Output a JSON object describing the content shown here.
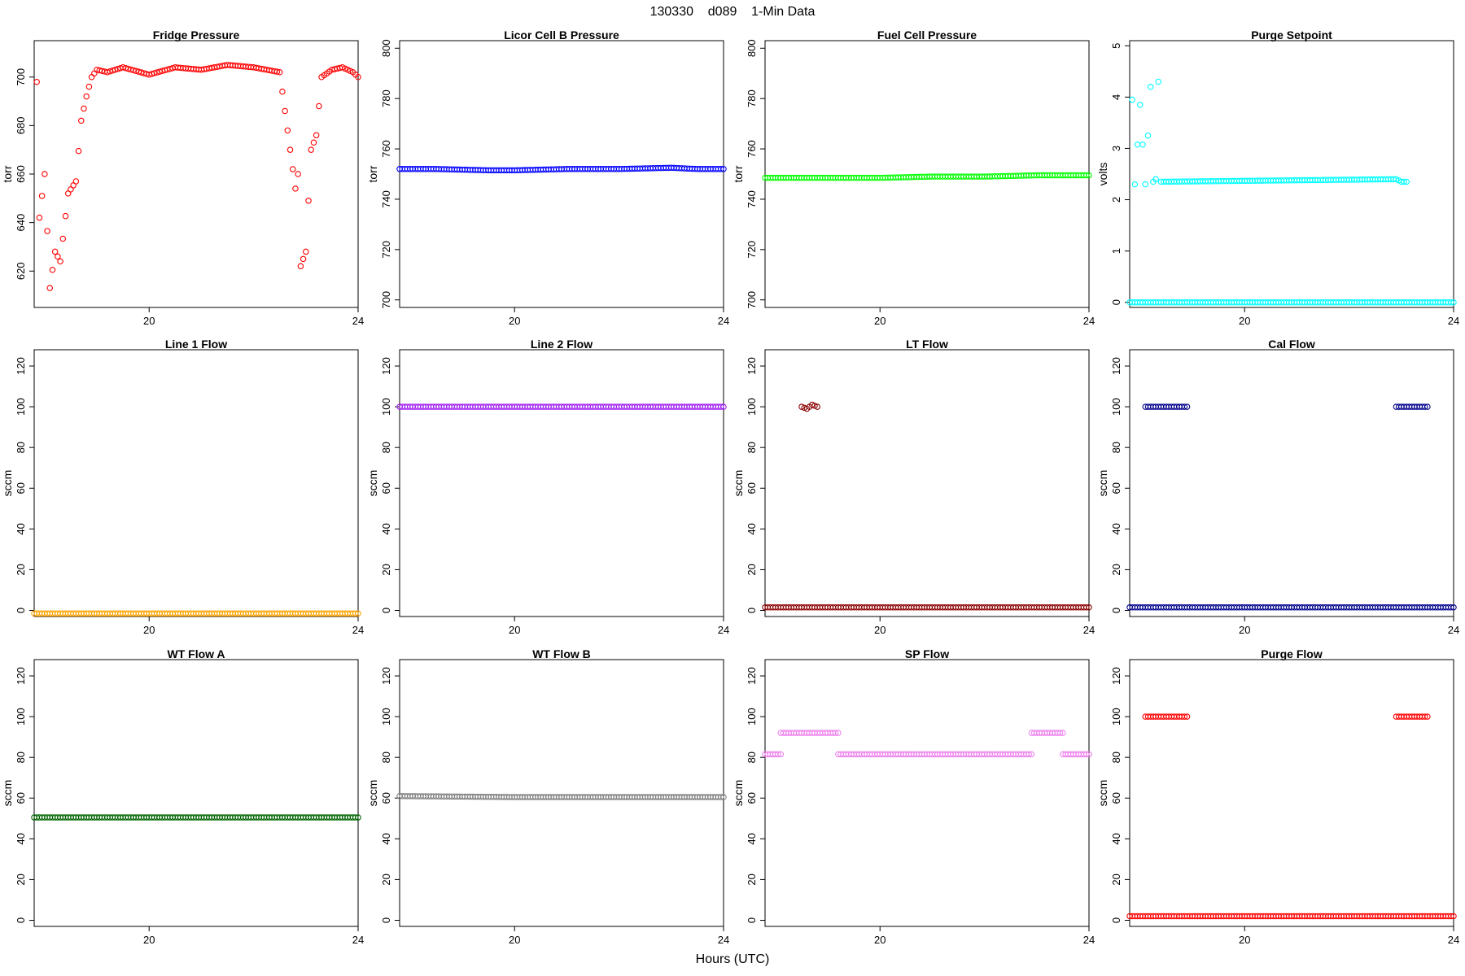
{
  "figure": {
    "title": "130330    d089    1-Min Data",
    "xlabel": "Hours (UTC)"
  },
  "chart_data": [
    {
      "type": "scatter",
      "title": "Fridge Pressure",
      "ylabel": "torr",
      "color": "#ff0000",
      "xlim": [
        17.8,
        24.0
      ],
      "ylim": [
        605,
        715
      ],
      "xticks": [
        20,
        24
      ],
      "yticks": [
        620,
        640,
        660,
        680,
        700
      ],
      "series": [
        {
          "x": [
            17.85,
            17.9,
            18.0,
            18.1,
            18.2,
            18.3,
            18.45,
            18.6,
            18.7,
            18.8,
            18.9,
            19.0,
            19.2,
            19.5,
            20.0,
            20.5,
            21.0,
            21.5,
            22.0,
            22.5,
            22.8,
            22.85,
            22.9,
            23.0,
            23.1,
            23.2,
            23.3,
            23.5,
            23.7,
            23.9,
            24.0
          ],
          "y": [
            698,
            642,
            660,
            613,
            628,
            624,
            652,
            657,
            682,
            692,
            700,
            703,
            702,
            704,
            701,
            704,
            703,
            705,
            704,
            702,
            654,
            660,
            622,
            628,
            670,
            676,
            700,
            703,
            704,
            702,
            700
          ]
        }
      ]
    },
    {
      "type": "scatter",
      "title": "Licor Cell B Pressure",
      "ylabel": "torr",
      "color": "#0000ff",
      "xlim": [
        17.8,
        24.0
      ],
      "ylim": [
        697,
        803
      ],
      "xticks": [
        20,
        24
      ],
      "yticks": [
        700,
        720,
        740,
        760,
        780,
        800
      ],
      "series": [
        {
          "x": [
            17.8,
            18.5,
            19.5,
            20.0,
            21.0,
            22.0,
            23.0,
            23.5,
            24.0
          ],
          "y": [
            752,
            752,
            751.5,
            751.5,
            752,
            752,
            752.5,
            752,
            752
          ]
        }
      ]
    },
    {
      "type": "scatter",
      "title": "Fuel Cell Pressure",
      "ylabel": "torr",
      "color": "#00ff00",
      "xlim": [
        17.8,
        24.0
      ],
      "ylim": [
        697,
        803
      ],
      "xticks": [
        20,
        24
      ],
      "yticks": [
        700,
        720,
        740,
        760,
        780,
        800
      ],
      "series": [
        {
          "x": [
            17.8,
            18.5,
            19.5,
            20.0,
            21.0,
            22.0,
            23.0,
            24.0
          ],
          "y": [
            748.5,
            748.5,
            748.5,
            748.5,
            749,
            749,
            749.5,
            749.5
          ]
        }
      ]
    },
    {
      "type": "scatter",
      "title": "Purge Setpoint",
      "ylabel": "volts",
      "color": "#00ffff",
      "xlim": [
        17.8,
        24.0
      ],
      "ylim": [
        -0.1,
        5.1
      ],
      "xticks": [
        20,
        24
      ],
      "yticks": [
        0,
        1,
        2,
        3,
        4,
        5
      ],
      "series": [
        {
          "x": [
            17.85,
            17.9,
            18.0,
            18.1,
            18.2,
            18.25,
            18.3,
            18.35,
            18.4,
            22.9,
            23.0,
            23.1
          ],
          "y": [
            3.95,
            2.3,
            3.85,
            2.3,
            4.2,
            2.35,
            2.4,
            4.3,
            2.35,
            2.4,
            2.35,
            2.35
          ]
        },
        {
          "x": [
            17.8,
            24.0
          ],
          "y": [
            0,
            0
          ]
        }
      ]
    },
    {
      "type": "scatter",
      "title": "Line 1 Flow",
      "ylabel": "sccm",
      "color": "#ffa500",
      "xlim": [
        17.8,
        24.0
      ],
      "ylim": [
        -3,
        128
      ],
      "xticks": [
        20,
        24
      ],
      "yticks": [
        0,
        20,
        40,
        60,
        80,
        100,
        120
      ],
      "series": [
        {
          "x": [
            17.8,
            24.0
          ],
          "y": [
            -1.5,
            -1.5
          ]
        }
      ]
    },
    {
      "type": "scatter",
      "title": "Line 2 Flow",
      "ylabel": "sccm",
      "color": "#a020f0",
      "xlim": [
        17.8,
        24.0
      ],
      "ylim": [
        -3,
        128
      ],
      "xticks": [
        20,
        24
      ],
      "yticks": [
        0,
        20,
        40,
        60,
        80,
        100,
        120
      ],
      "series": [
        {
          "x": [
            17.8,
            24.0
          ],
          "y": [
            100,
            100
          ]
        }
      ]
    },
    {
      "type": "scatter",
      "title": "LT Flow",
      "ylabel": "sccm",
      "color": "#8b0000",
      "xlim": [
        17.8,
        24.0
      ],
      "ylim": [
        -3,
        128
      ],
      "xticks": [
        20,
        24
      ],
      "yticks": [
        0,
        20,
        40,
        60,
        80,
        100,
        120
      ],
      "series": [
        {
          "x": [
            18.5,
            18.6,
            18.7,
            18.8
          ],
          "y": [
            100,
            99,
            101,
            100
          ]
        },
        {
          "x": [
            17.8,
            24.0
          ],
          "y": [
            1.5,
            1.5
          ]
        }
      ]
    },
    {
      "type": "scatter",
      "title": "Cal Flow",
      "ylabel": "sccm",
      "color": "#00008b",
      "xlim": [
        17.8,
        24.0
      ],
      "ylim": [
        -3,
        128
      ],
      "xticks": [
        20,
        24
      ],
      "yticks": [
        0,
        20,
        40,
        60,
        80,
        100,
        120
      ],
      "series": [
        {
          "x": [
            18.1,
            18.9
          ],
          "y": [
            100,
            100
          ]
        },
        {
          "x": [
            22.9,
            23.5
          ],
          "y": [
            100,
            100
          ]
        },
        {
          "x": [
            17.8,
            24.0
          ],
          "y": [
            1.5,
            1.5
          ]
        }
      ]
    },
    {
      "type": "scatter",
      "title": "WT Flow A",
      "ylabel": "sccm",
      "color": "#006400",
      "xlim": [
        17.8,
        24.0
      ],
      "ylim": [
        -3,
        128
      ],
      "xticks": [
        20,
        24
      ],
      "yticks": [
        0,
        20,
        40,
        60,
        80,
        100,
        120
      ],
      "series": [
        {
          "x": [
            17.8,
            24.0
          ],
          "y": [
            50.5,
            50.5
          ]
        }
      ]
    },
    {
      "type": "scatter",
      "title": "WT Flow B",
      "ylabel": "sccm",
      "color": "#808080",
      "xlim": [
        17.8,
        24.0
      ],
      "ylim": [
        -3,
        128
      ],
      "xticks": [
        20,
        24
      ],
      "yticks": [
        0,
        20,
        40,
        60,
        80,
        100,
        120
      ],
      "series": [
        {
          "x": [
            17.8,
            20.0,
            24.0
          ],
          "y": [
            61,
            60.5,
            60.5
          ]
        }
      ]
    },
    {
      "type": "scatter",
      "title": "SP Flow",
      "ylabel": "sccm",
      "color": "#ee82ee",
      "xlim": [
        17.8,
        24.0
      ],
      "ylim": [
        -3,
        128
      ],
      "xticks": [
        20,
        24
      ],
      "yticks": [
        0,
        20,
        40,
        60,
        80,
        100,
        120
      ],
      "series": [
        {
          "x": [
            17.8,
            18.1
          ],
          "y": [
            81.5,
            81.5
          ]
        },
        {
          "x": [
            18.1,
            19.2
          ],
          "y": [
            92,
            92
          ]
        },
        {
          "x": [
            19.2,
            22.9
          ],
          "y": [
            81.5,
            81.5
          ]
        },
        {
          "x": [
            22.9,
            23.5
          ],
          "y": [
            92,
            92
          ]
        },
        {
          "x": [
            23.5,
            24.0
          ],
          "y": [
            81.5,
            81.5
          ]
        }
      ]
    },
    {
      "type": "scatter",
      "title": "Purge Flow",
      "ylabel": "sccm",
      "color": "#ff0000",
      "xlim": [
        17.8,
        24.0
      ],
      "ylim": [
        -3,
        128
      ],
      "xticks": [
        20,
        24
      ],
      "yticks": [
        0,
        20,
        40,
        60,
        80,
        100,
        120
      ],
      "series": [
        {
          "x": [
            18.1,
            18.9
          ],
          "y": [
            100,
            100
          ]
        },
        {
          "x": [
            22.9,
            23.5
          ],
          "y": [
            100,
            100
          ]
        },
        {
          "x": [
            17.8,
            24.0
          ],
          "y": [
            2,
            2
          ]
        }
      ]
    }
  ]
}
